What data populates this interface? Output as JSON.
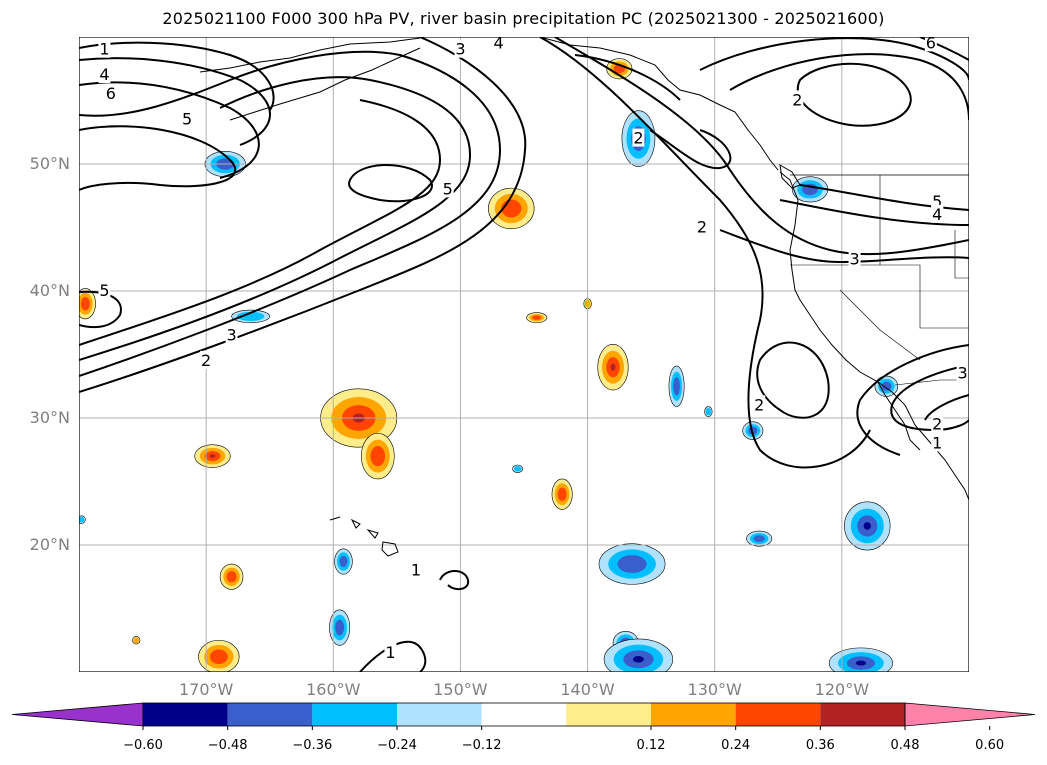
{
  "title": "2025021100 F000 300 hPa PV, river basin precipitation PC (2025021300 - 2025021600)",
  "map": {
    "lon_range": [
      -180,
      -110
    ],
    "lat_range": [
      10,
      60
    ],
    "lat_labels": [
      "20°N",
      "30°N",
      "40°N",
      "50°N"
    ],
    "lat_values": [
      20,
      30,
      40,
      50
    ],
    "lon_labels": [
      "170°W",
      "160°W",
      "150°W",
      "140°W",
      "130°W",
      "120°W"
    ],
    "lon_values": [
      -170,
      -160,
      -150,
      -140,
      -130,
      -120
    ],
    "gridlines": true
  },
  "contours": {
    "labels": [
      {
        "text": "1",
        "lon": -178,
        "lat": 59
      },
      {
        "text": "4",
        "lon": -178,
        "lat": 57
      },
      {
        "text": "6",
        "lon": -177.5,
        "lat": 55.5
      },
      {
        "text": "5",
        "lon": -171.5,
        "lat": 53.5
      },
      {
        "text": "3",
        "lon": -150,
        "lat": 59
      },
      {
        "text": "4",
        "lon": -147,
        "lat": 59.5
      },
      {
        "text": "5",
        "lon": -151,
        "lat": 48
      },
      {
        "text": "5",
        "lon": -178,
        "lat": 40
      },
      {
        "text": "3",
        "lon": -168,
        "lat": 36.5
      },
      {
        "text": "2",
        "lon": -170,
        "lat": 34.5
      },
      {
        "text": "2",
        "lon": -136,
        "lat": 52
      },
      {
        "text": "2",
        "lon": -131,
        "lat": 45
      },
      {
        "text": "2",
        "lon": -123.5,
        "lat": 55
      },
      {
        "text": "3",
        "lon": -119,
        "lat": 42.5
      },
      {
        "text": "5",
        "lon": -112.5,
        "lat": 47
      },
      {
        "text": "4",
        "lon": -112.5,
        "lat": 46
      },
      {
        "text": "2",
        "lon": -126.5,
        "lat": 31
      },
      {
        "text": "2",
        "lon": -112.5,
        "lat": 29.5
      },
      {
        "text": "1",
        "lon": -112.5,
        "lat": 28
      },
      {
        "text": "3",
        "lon": -110.5,
        "lat": 33.5
      },
      {
        "text": "6",
        "lon": -113,
        "lat": 59.5
      },
      {
        "text": "1",
        "lon": -153.5,
        "lat": 18
      },
      {
        "text": "1",
        "lon": -155.5,
        "lat": 11.5
      }
    ]
  },
  "colorbar": {
    "colors": [
      "#9932cc",
      "#00008b",
      "#3a5fcd",
      "#00bfff",
      "#b0e2ff",
      "#ffffff",
      "#ffec8b",
      "#ffa500",
      "#ff4500",
      "#b22222",
      "#ff82ab"
    ],
    "tick_labels": [
      "−0.60",
      "−0.48",
      "−0.36",
      "−0.24",
      "−0.12",
      "0.12",
      "0.24",
      "0.36",
      "0.48",
      "0.60"
    ]
  },
  "precip_blobs": [
    {
      "lon": -169.5,
      "lat": 27,
      "rx": 1.4,
      "ry": 0.9,
      "sign": "pos",
      "level": 4
    },
    {
      "lon": -168.0,
      "lat": 17.5,
      "rx": 0.9,
      "ry": 1.0,
      "sign": "pos",
      "level": 3
    },
    {
      "lon": -169.0,
      "lat": 11.2,
      "rx": 1.6,
      "ry": 1.3,
      "sign": "pos",
      "level": 3
    },
    {
      "lon": -175.5,
      "lat": 12.5,
      "rx": 0.3,
      "ry": 0.3,
      "sign": "pos",
      "level": 2
    },
    {
      "lon": -158.0,
      "lat": 30.0,
      "rx": 3.0,
      "ry": 2.3,
      "sign": "pos",
      "level": 4
    },
    {
      "lon": -156.5,
      "lat": 27.0,
      "rx": 1.3,
      "ry": 1.8,
      "sign": "pos",
      "level": 3
    },
    {
      "lon": -146.0,
      "lat": 46.5,
      "rx": 1.8,
      "ry": 1.6,
      "sign": "pos",
      "level": 3
    },
    {
      "lon": -142.0,
      "lat": 24.0,
      "rx": 0.8,
      "ry": 1.2,
      "sign": "pos",
      "level": 3
    },
    {
      "lon": -138.0,
      "lat": 34.0,
      "rx": 1.2,
      "ry": 1.8,
      "sign": "pos",
      "level": 4
    },
    {
      "lon": -140.0,
      "lat": 39.0,
      "rx": 0.3,
      "ry": 0.4,
      "sign": "pos",
      "level": 2
    },
    {
      "lon": -144.0,
      "lat": 37.9,
      "rx": 0.8,
      "ry": 0.4,
      "sign": "pos",
      "level": 3
    },
    {
      "lon": -179.5,
      "lat": 39.0,
      "rx": 0.8,
      "ry": 1.2,
      "sign": "pos",
      "level": 3
    },
    {
      "lon": -137.5,
      "lat": 57.5,
      "rx": 1.0,
      "ry": 0.8,
      "sign": "pos",
      "level": 3
    },
    {
      "lon": -168.5,
      "lat": 50.0,
      "rx": 1.6,
      "ry": 1.0,
      "sign": "neg",
      "level": 3
    },
    {
      "lon": -166.5,
      "lat": 38.0,
      "rx": 1.5,
      "ry": 0.5,
      "sign": "neg",
      "level": 2
    },
    {
      "lon": -136.0,
      "lat": 52.0,
      "rx": 1.3,
      "ry": 2.2,
      "sign": "neg",
      "level": 3
    },
    {
      "lon": -122.5,
      "lat": 48.0,
      "rx": 1.4,
      "ry": 1.0,
      "sign": "neg",
      "level": 3
    },
    {
      "lon": -133.0,
      "lat": 32.5,
      "rx": 0.6,
      "ry": 1.6,
      "sign": "neg",
      "level": 3
    },
    {
      "lon": -130.5,
      "lat": 30.5,
      "rx": 0.3,
      "ry": 0.4,
      "sign": "neg",
      "level": 2
    },
    {
      "lon": -127.0,
      "lat": 29.0,
      "rx": 0.8,
      "ry": 0.7,
      "sign": "neg",
      "level": 3
    },
    {
      "lon": -126.5,
      "lat": 20.5,
      "rx": 1.0,
      "ry": 0.6,
      "sign": "neg",
      "level": 3
    },
    {
      "lon": -116.5,
      "lat": 32.5,
      "rx": 0.9,
      "ry": 0.8,
      "sign": "neg",
      "level": 3
    },
    {
      "lon": -118.0,
      "lat": 21.5,
      "rx": 1.8,
      "ry": 1.9,
      "sign": "neg",
      "level": 4
    },
    {
      "lon": -118.5,
      "lat": 10.7,
      "rx": 2.5,
      "ry": 1.2,
      "sign": "neg",
      "level": 4
    },
    {
      "lon": -136.5,
      "lat": 18.5,
      "rx": 2.6,
      "ry": 1.6,
      "sign": "neg",
      "level": 3
    },
    {
      "lon": -137.0,
      "lat": 12.3,
      "rx": 1.0,
      "ry": 0.9,
      "sign": "neg",
      "level": 3
    },
    {
      "lon": -136.0,
      "lat": 11.0,
      "rx": 2.7,
      "ry": 1.6,
      "sign": "neg",
      "level": 4
    },
    {
      "lon": -159.5,
      "lat": 13.5,
      "rx": 0.8,
      "ry": 1.4,
      "sign": "neg",
      "level": 3
    },
    {
      "lon": -159.2,
      "lat": 18.7,
      "rx": 0.7,
      "ry": 1.0,
      "sign": "neg",
      "level": 3
    },
    {
      "lon": -145.5,
      "lat": 26.0,
      "rx": 0.4,
      "ry": 0.3,
      "sign": "neg",
      "level": 2
    },
    {
      "lon": -179.8,
      "lat": 22.0,
      "rx": 0.3,
      "ry": 0.3,
      "sign": "neg",
      "level": 2
    }
  ]
}
